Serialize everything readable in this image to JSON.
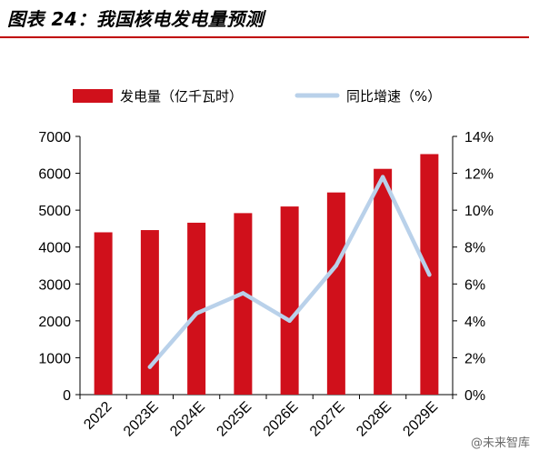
{
  "figure": {
    "title": "图表 24：我国核电发电量预测"
  },
  "watermark": {
    "label": "@未来智库"
  },
  "chart_data": {
    "type": "bar",
    "categories": [
      "2022",
      "2023E",
      "2024E",
      "2025E",
      "2026E",
      "2027E",
      "2028E",
      "2029E"
    ],
    "series": [
      {
        "name": "发电量（亿千瓦时）",
        "type": "bar",
        "axis": "left",
        "color": "#d0101b",
        "values": [
          4400,
          4460,
          4660,
          4920,
          5100,
          5480,
          6120,
          6520
        ]
      },
      {
        "name": "同比增速（%）",
        "type": "line",
        "axis": "right",
        "color": "#b9d1ea",
        "values": [
          null,
          1.5,
          4.4,
          5.5,
          4.0,
          7.0,
          11.8,
          6.5
        ]
      }
    ],
    "left_axis": {
      "ylim": [
        0,
        7000
      ],
      "ticks": [
        "0",
        "1000",
        "2000",
        "3000",
        "4000",
        "5000",
        "6000",
        "7000"
      ]
    },
    "right_axis": {
      "ylim": [
        0,
        14
      ],
      "ticks": [
        "0%",
        "2%",
        "4%",
        "6%",
        "8%",
        "10%",
        "12%",
        "14%"
      ]
    },
    "grid": false,
    "legend": "top"
  }
}
